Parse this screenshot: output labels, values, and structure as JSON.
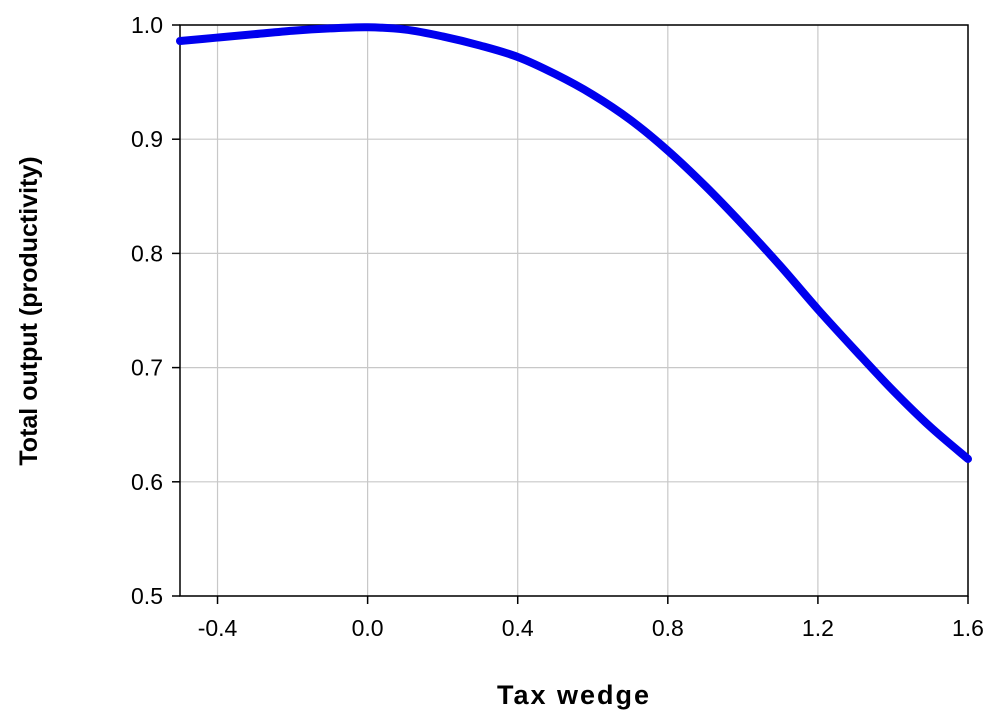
{
  "chart_data": {
    "type": "line",
    "xlabel": "Tax wedge",
    "ylabel": "Total output (productivity)",
    "xlim": [
      -0.5,
      1.6
    ],
    "ylim": [
      0.5,
      1.0
    ],
    "xticks": [
      -0.4,
      0.0,
      0.4,
      0.8,
      1.2,
      1.6
    ],
    "xtick_labels": [
      "-0.4",
      "0.0",
      "0.4",
      "0.8",
      "1.2",
      "1.6"
    ],
    "yticks": [
      0.5,
      0.6,
      0.7,
      0.8,
      0.9,
      1.0
    ],
    "ytick_labels": [
      "0.5",
      "0.6",
      "0.7",
      "0.8",
      "0.9",
      "1.0"
    ],
    "grid": true,
    "series": [
      {
        "color": "#0000ee",
        "x": [
          -0.5,
          -0.4,
          -0.3,
          -0.2,
          -0.1,
          0.0,
          0.1,
          0.2,
          0.3,
          0.4,
          0.5,
          0.6,
          0.7,
          0.8,
          0.9,
          1.0,
          1.1,
          1.2,
          1.3,
          1.4,
          1.5,
          1.6
        ],
        "y": [
          0.986,
          0.989,
          0.992,
          0.995,
          0.997,
          0.998,
          0.996,
          0.99,
          0.982,
          0.972,
          0.957,
          0.939,
          0.917,
          0.89,
          0.859,
          0.825,
          0.789,
          0.751,
          0.715,
          0.68,
          0.648,
          0.62
        ]
      }
    ]
  }
}
